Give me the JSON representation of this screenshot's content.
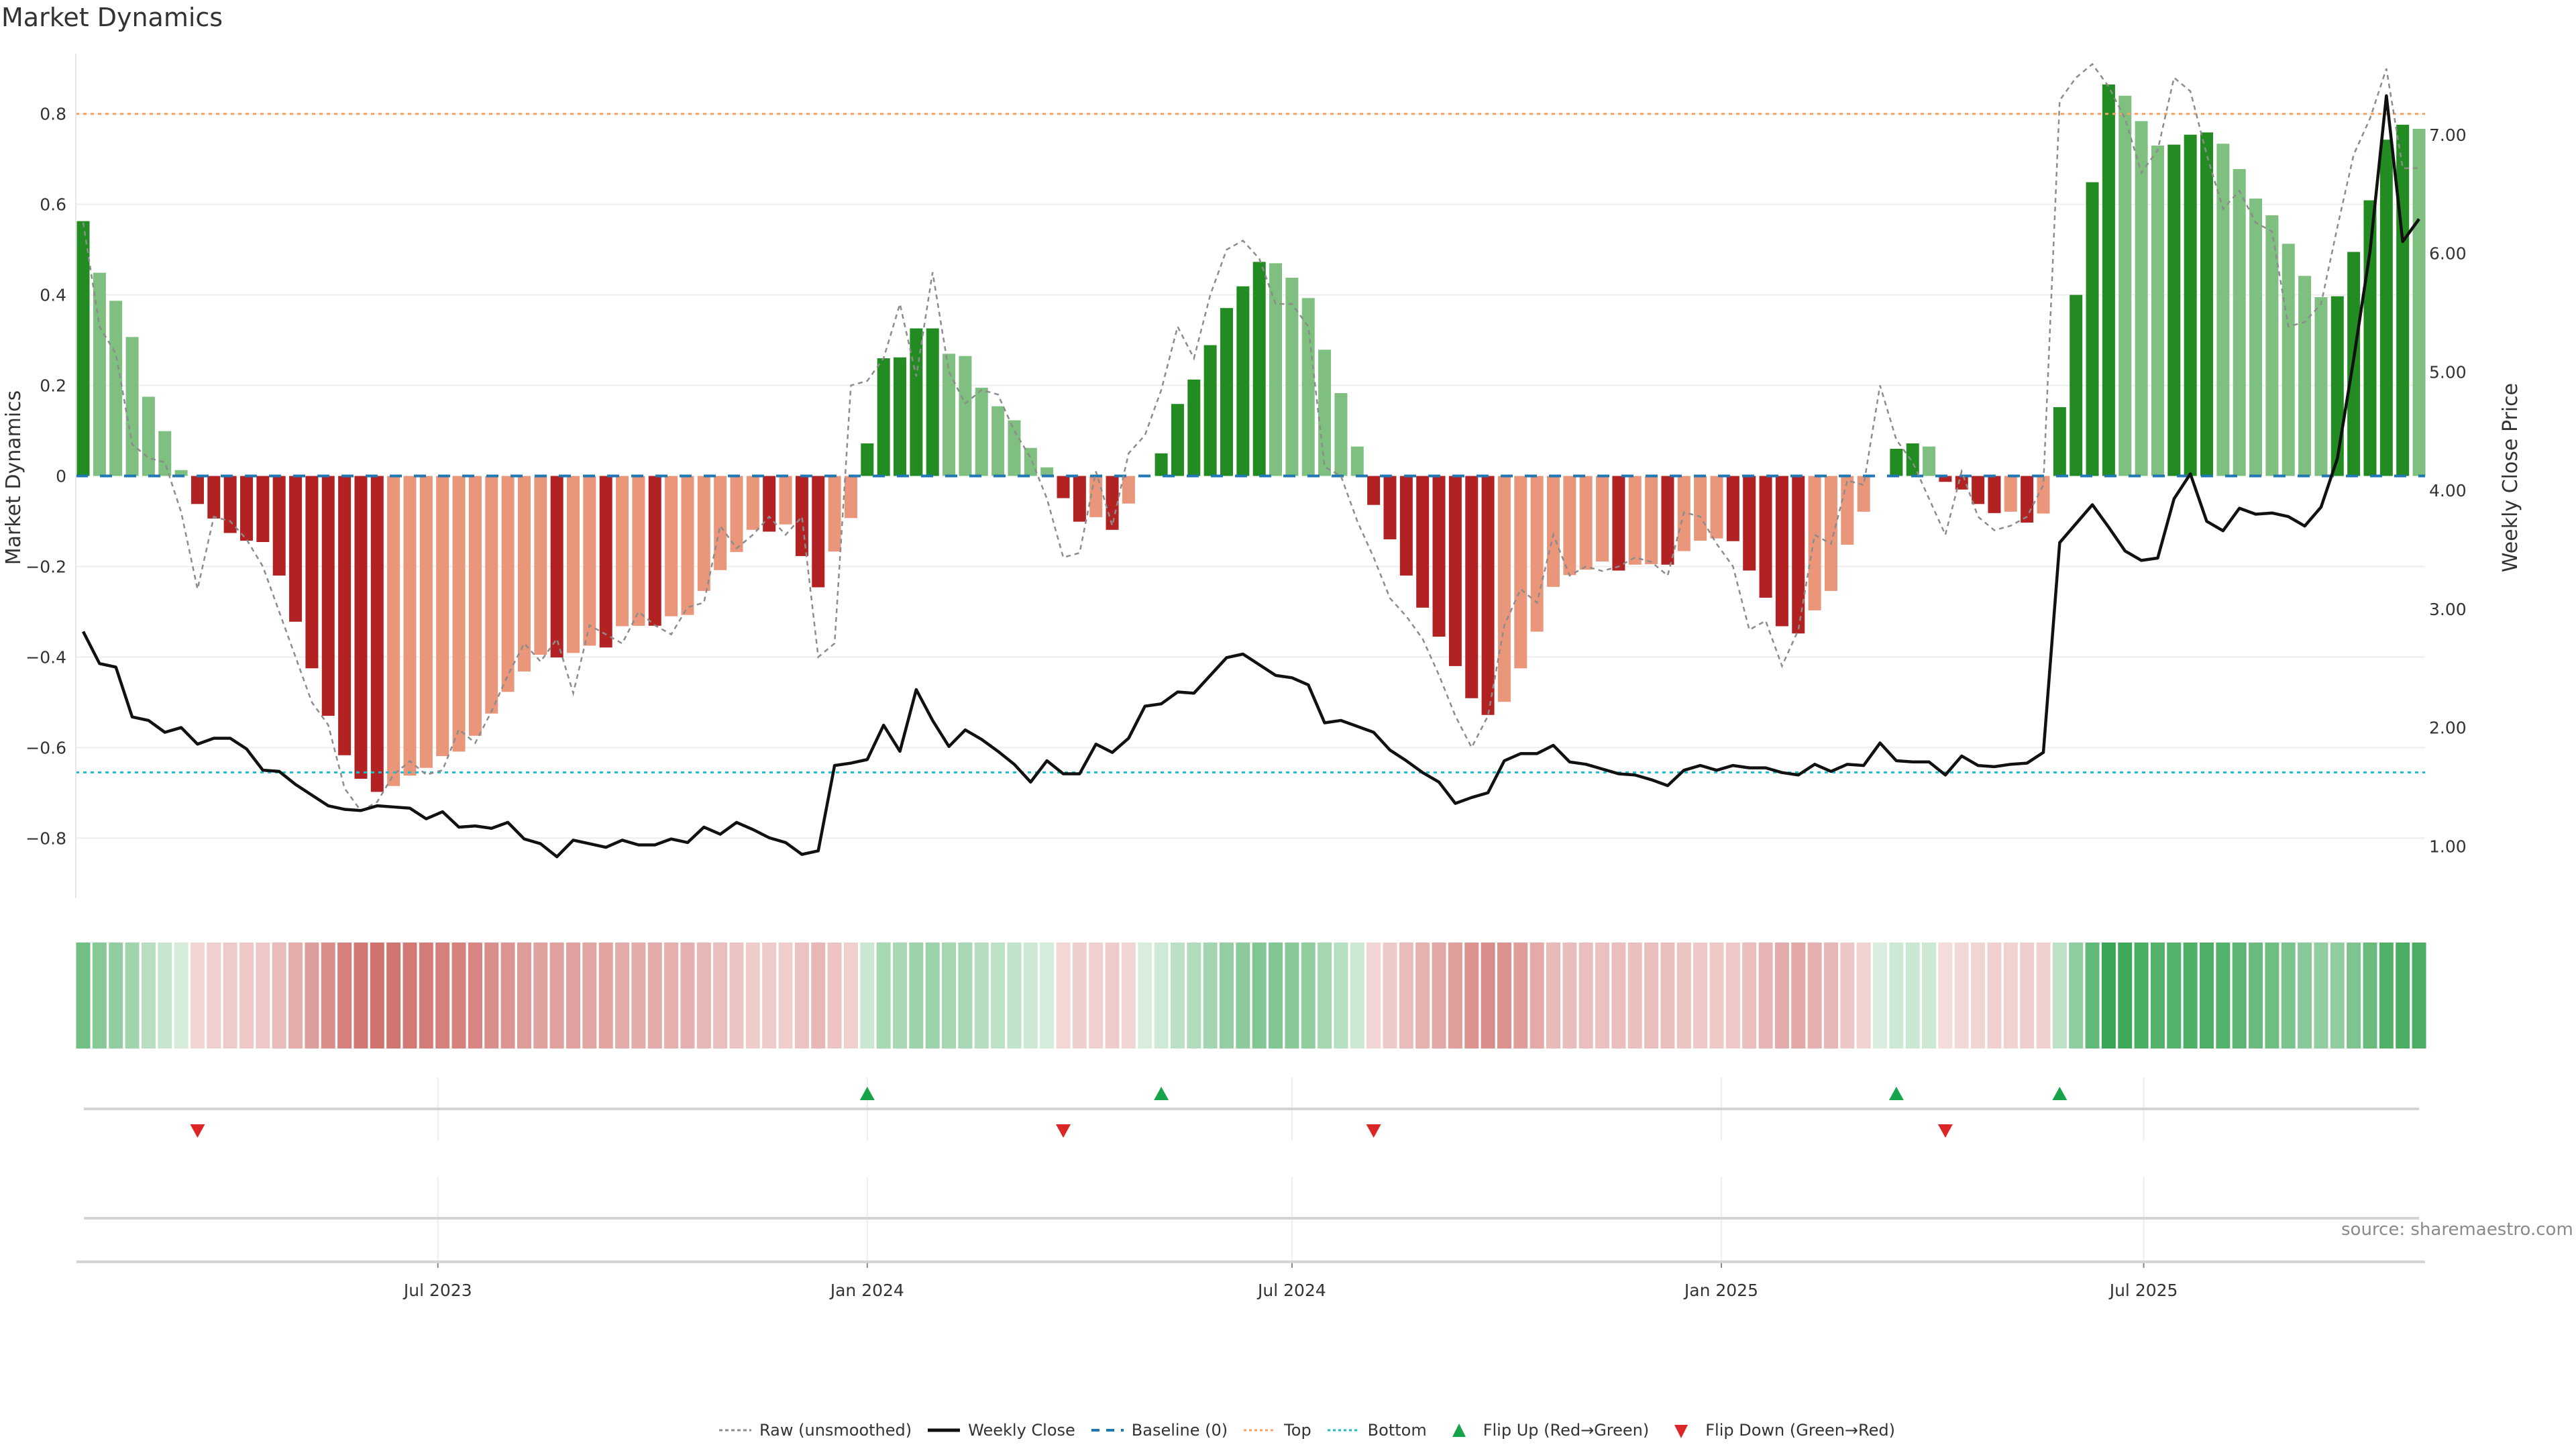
{
  "title": "Market Dynamics",
  "source": "source: sharemaestro.com",
  "colors": {
    "pos_strong": "#228b22",
    "pos_weak": "#7fbf7f",
    "neg_strong": "#b22222",
    "neg_weak": "#e9967a",
    "close": "#111111",
    "raw": "#8c8c8c",
    "baseline": "#1f77b4",
    "top": "#f4a460",
    "bottom": "#17becf",
    "flip_up": "#16a34a",
    "flip_down": "#dc2626",
    "heat_pos": "#3aa655",
    "heat_neg": "#c85a55"
  },
  "legend": [
    {
      "key": "raw",
      "label": "Raw (unsmoothed)"
    },
    {
      "key": "close",
      "label": "Weekly Close"
    },
    {
      "key": "baseline",
      "label": "Baseline (0)"
    },
    {
      "key": "top",
      "label": "Top"
    },
    {
      "key": "bottom",
      "label": "Bottom"
    },
    {
      "key": "flip_up",
      "label": "Flip Up (Red→Green)"
    },
    {
      "key": "flip_down",
      "label": "Flip Down (Green→Red)"
    }
  ],
  "chart_data": {
    "type": "bar",
    "title": "Market Dynamics",
    "ylabel": "Market Dynamics",
    "y2label": "Weekly Close Price",
    "ylim": [
      -0.933,
      0.933
    ],
    "y2lim": [
      0.56,
      7.685
    ],
    "yticks": [
      0.8,
      0.6,
      0.4,
      0.2,
      0,
      -0.2,
      -0.4,
      -0.6,
      -0.8
    ],
    "ytick_labels": [
      "0.8",
      "0.6",
      "0.4",
      "0.2",
      "0",
      "−0.2",
      "−0.4",
      "−0.6",
      "−0.8"
    ],
    "y2ticks": [
      7,
      6,
      5,
      4,
      3,
      2,
      1
    ],
    "y2tick_labels": [
      "7.00",
      "6.00",
      "5.00",
      "4.00",
      "3.00",
      "2.00",
      "1.00"
    ],
    "x_start": "2023-01-30",
    "x_step_days": 7,
    "xticks": [
      {
        "date": "2023-07-01",
        "label": "Jul 2023"
      },
      {
        "date": "2024-01-01",
        "label": "Jan 2024"
      },
      {
        "date": "2024-07-01",
        "label": "Jul 2024"
      },
      {
        "date": "2025-01-01",
        "label": "Jan 2025"
      },
      {
        "date": "2025-07-01",
        "label": "Jul 2025"
      }
    ],
    "top_level": 0.8,
    "bottom_level": -0.655,
    "baseline": 0,
    "grid": true,
    "legend_position": "bottom-center",
    "market_dynamics": [
      0.563,
      0.449,
      0.387,
      0.307,
      0.175,
      0.099,
      0.013,
      -0.062,
      -0.094,
      -0.126,
      -0.143,
      -0.146,
      -0.22,
      -0.322,
      -0.425,
      -0.53,
      -0.617,
      -0.669,
      -0.698,
      -0.685,
      -0.662,
      -0.645,
      -0.619,
      -0.609,
      -0.574,
      -0.525,
      -0.477,
      -0.432,
      -0.395,
      -0.401,
      -0.391,
      -0.375,
      -0.379,
      -0.332,
      -0.331,
      -0.331,
      -0.31,
      -0.307,
      -0.254,
      -0.208,
      -0.168,
      -0.119,
      -0.123,
      -0.107,
      -0.177,
      -0.246,
      -0.167,
      -0.093,
      0.072,
      0.26,
      0.262,
      0.326,
      0.326,
      0.27,
      0.265,
      0.195,
      0.154,
      0.123,
      0.062,
      0.019,
      -0.049,
      -0.101,
      -0.091,
      -0.119,
      -0.061,
      0,
      0.05,
      0.159,
      0.213,
      0.289,
      0.371,
      0.419,
      0.473,
      0.47,
      0.438,
      0.393,
      0.279,
      0.183,
      0.065,
      -0.064,
      -0.14,
      -0.22,
      -0.291,
      -0.355,
      -0.42,
      -0.491,
      -0.528,
      -0.499,
      -0.425,
      -0.344,
      -0.245,
      -0.219,
      -0.207,
      -0.189,
      -0.209,
      -0.196,
      -0.195,
      -0.196,
      -0.166,
      -0.143,
      -0.138,
      -0.144,
      -0.209,
      -0.269,
      -0.332,
      -0.348,
      -0.297,
      -0.254,
      -0.152,
      -0.079,
      0,
      0.06,
      0.072,
      0.065,
      -0.013,
      -0.03,
      -0.062,
      -0.082,
      -0.079,
      -0.103,
      -0.083,
      0.152,
      0.4,
      0.649,
      0.865,
      0.84,
      0.784,
      0.73,
      0.732,
      0.754,
      0.759,
      0.734,
      0.678,
      0.613,
      0.576,
      0.513,
      0.442,
      0.395,
      0.397,
      0.495,
      0.609,
      0.743,
      0.776,
      0.767
    ],
    "raw": [
      0.56,
      0.33,
      0.27,
      0.07,
      0.04,
      0.03,
      -0.08,
      -0.25,
      -0.09,
      -0.1,
      -0.14,
      -0.2,
      -0.3,
      -0.4,
      -0.5,
      -0.55,
      -0.69,
      -0.74,
      -0.72,
      -0.66,
      -0.63,
      -0.66,
      -0.65,
      -0.56,
      -0.59,
      -0.52,
      -0.44,
      -0.37,
      -0.41,
      -0.36,
      -0.48,
      -0.33,
      -0.35,
      -0.37,
      -0.3,
      -0.33,
      -0.35,
      -0.29,
      -0.28,
      -0.11,
      -0.16,
      -0.13,
      -0.09,
      -0.13,
      -0.09,
      -0.4,
      -0.37,
      0.2,
      0.21,
      0.26,
      0.38,
      0.22,
      0.45,
      0.23,
      0.16,
      0.19,
      0.18,
      0.1,
      0.04,
      -0.05,
      -0.18,
      -0.17,
      0.01,
      -0.11,
      0.05,
      0.09,
      0.19,
      0.33,
      0.26,
      0.4,
      0.5,
      0.52,
      0.48,
      0.38,
      0.38,
      0.33,
      0.02,
      0,
      -0.1,
      -0.18,
      -0.27,
      -0.31,
      -0.36,
      -0.44,
      -0.53,
      -0.6,
      -0.53,
      -0.33,
      -0.25,
      -0.28,
      -0.13,
      -0.22,
      -0.2,
      -0.21,
      -0.2,
      -0.18,
      -0.19,
      -0.22,
      -0.08,
      -0.09,
      -0.15,
      -0.2,
      -0.34,
      -0.32,
      -0.42,
      -0.34,
      -0.13,
      -0.15,
      -0.01,
      -0.02,
      0.2,
      0.08,
      0.03,
      -0.05,
      -0.13,
      0.01,
      -0.09,
      -0.12,
      -0.11,
      -0.09,
      -0.02,
      0.83,
      0.88,
      0.91,
      0.86,
      0.79,
      0.67,
      0.72,
      0.88,
      0.85,
      0.71,
      0.59,
      0.63,
      0.56,
      0.54,
      0.33,
      0.34,
      0.38,
      0.55,
      0.71,
      0.79,
      0.9,
      0.68,
      0.68
    ],
    "weekly_close": [
      2.81,
      2.54,
      2.51,
      2.09,
      2.06,
      1.96,
      2.0,
      1.86,
      1.91,
      1.91,
      1.82,
      1.64,
      1.63,
      1.52,
      1.43,
      1.34,
      1.31,
      1.3,
      1.34,
      1.33,
      1.32,
      1.23,
      1.29,
      1.16,
      1.17,
      1.15,
      1.2,
      1.06,
      1.02,
      0.91,
      1.05,
      1.02,
      0.99,
      1.05,
      1.01,
      1.01,
      1.06,
      1.03,
      1.16,
      1.1,
      1.2,
      1.14,
      1.07,
      1.03,
      0.93,
      0.96,
      1.68,
      1.7,
      1.73,
      2.02,
      1.8,
      2.32,
      2.06,
      1.84,
      1.98,
      1.9,
      1.8,
      1.69,
      1.54,
      1.72,
      1.61,
      1.61,
      1.86,
      1.79,
      1.91,
      2.18,
      2.2,
      2.3,
      2.29,
      2.44,
      2.59,
      2.62,
      2.53,
      2.44,
      2.42,
      2.36,
      2.04,
      2.06,
      2.01,
      1.96,
      1.81,
      1.72,
      1.62,
      1.54,
      1.36,
      1.41,
      1.45,
      1.72,
      1.78,
      1.78,
      1.85,
      1.71,
      1.69,
      1.65,
      1.61,
      1.6,
      1.56,
      1.51,
      1.64,
      1.68,
      1.64,
      1.68,
      1.66,
      1.66,
      1.62,
      1.6,
      1.69,
      1.63,
      1.69,
      1.68,
      1.87,
      1.72,
      1.71,
      1.71,
      1.6,
      1.76,
      1.68,
      1.67,
      1.69,
      1.7,
      1.79,
      3.56,
      3.72,
      3.88,
      3.69,
      3.49,
      3.41,
      3.43,
      3.93,
      4.14,
      3.74,
      3.66,
      3.85,
      3.8,
      3.81,
      3.78,
      3.7,
      3.86,
      4.27,
      5.11,
      6.02,
      7.33,
      6.1,
      6.29
    ],
    "flip_up_weeks": [
      48,
      66,
      111,
      121
    ],
    "flip_down_weeks": [
      7,
      60,
      79,
      114
    ]
  }
}
